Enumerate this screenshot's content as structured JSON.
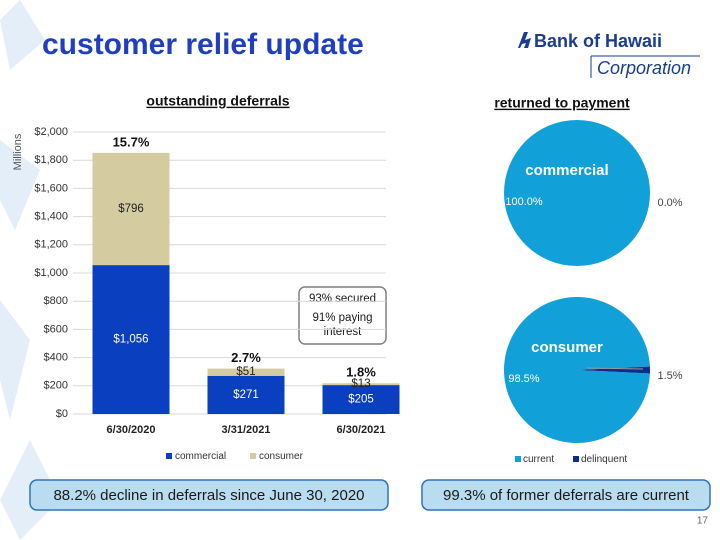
{
  "title": "customer relief update",
  "logo": {
    "name": "Bank of Hawaii",
    "subtitle": "Corporation"
  },
  "notes": [
    "88.2% decline in deferrals since June 30, 2020",
    "99.3% of former deferrals are current"
  ],
  "page_number": "17",
  "chart_data": [
    {
      "type": "bar",
      "title": "outstanding deferrals",
      "y_label": "Millions",
      "categories": [
        "6/30/2020",
        "3/31/2021",
        "6/30/2021"
      ],
      "series": [
        {
          "name": "commercial",
          "color": "#0a3fbf",
          "values": [
            1056,
            271,
            205
          ],
          "value_labels": [
            "$1,056",
            "$271",
            "$205"
          ]
        },
        {
          "name": "consumer",
          "color": "#d5cba1",
          "values": [
            796,
            51,
            13
          ],
          "value_labels": [
            "$796",
            "$51",
            "$13"
          ]
        }
      ],
      "annotations": [
        "15.7%",
        "2.7%",
        "1.8%"
      ],
      "callout": [
        "93% secured",
        "91% paying interest"
      ],
      "ylim": [
        0,
        2000
      ],
      "yticks": [
        {
          "value": 0,
          "label": "$0"
        },
        {
          "value": 200,
          "label": "$200"
        },
        {
          "value": 400,
          "label": "$400"
        },
        {
          "value": 600,
          "label": "$600"
        },
        {
          "value": 800,
          "label": "$800"
        },
        {
          "value": 1000,
          "label": "$1,000"
        },
        {
          "value": 1200,
          "label": "$1,200"
        },
        {
          "value": 1400,
          "label": "$1,400"
        },
        {
          "value": 1600,
          "label": "$1,600"
        },
        {
          "value": 1800,
          "label": "$1,800"
        },
        {
          "value": 2000,
          "label": "$2,000"
        }
      ],
      "grid": true,
      "legend": "bottom"
    },
    {
      "type": "pie",
      "title": "returned to payment",
      "categories": [
        "current",
        "delinquent"
      ],
      "colors": [
        "#12a0d8",
        "#0a2d8c"
      ],
      "series": [
        {
          "name": "commercial",
          "values": [
            100,
            0
          ],
          "value_labels": [
            "100.0%",
            "0.0%"
          ]
        },
        {
          "name": "consumer",
          "values": [
            98.5,
            1.5
          ],
          "value_labels": [
            "98.5%",
            "1.5%"
          ]
        }
      ],
      "legend": "bottom"
    }
  ]
}
